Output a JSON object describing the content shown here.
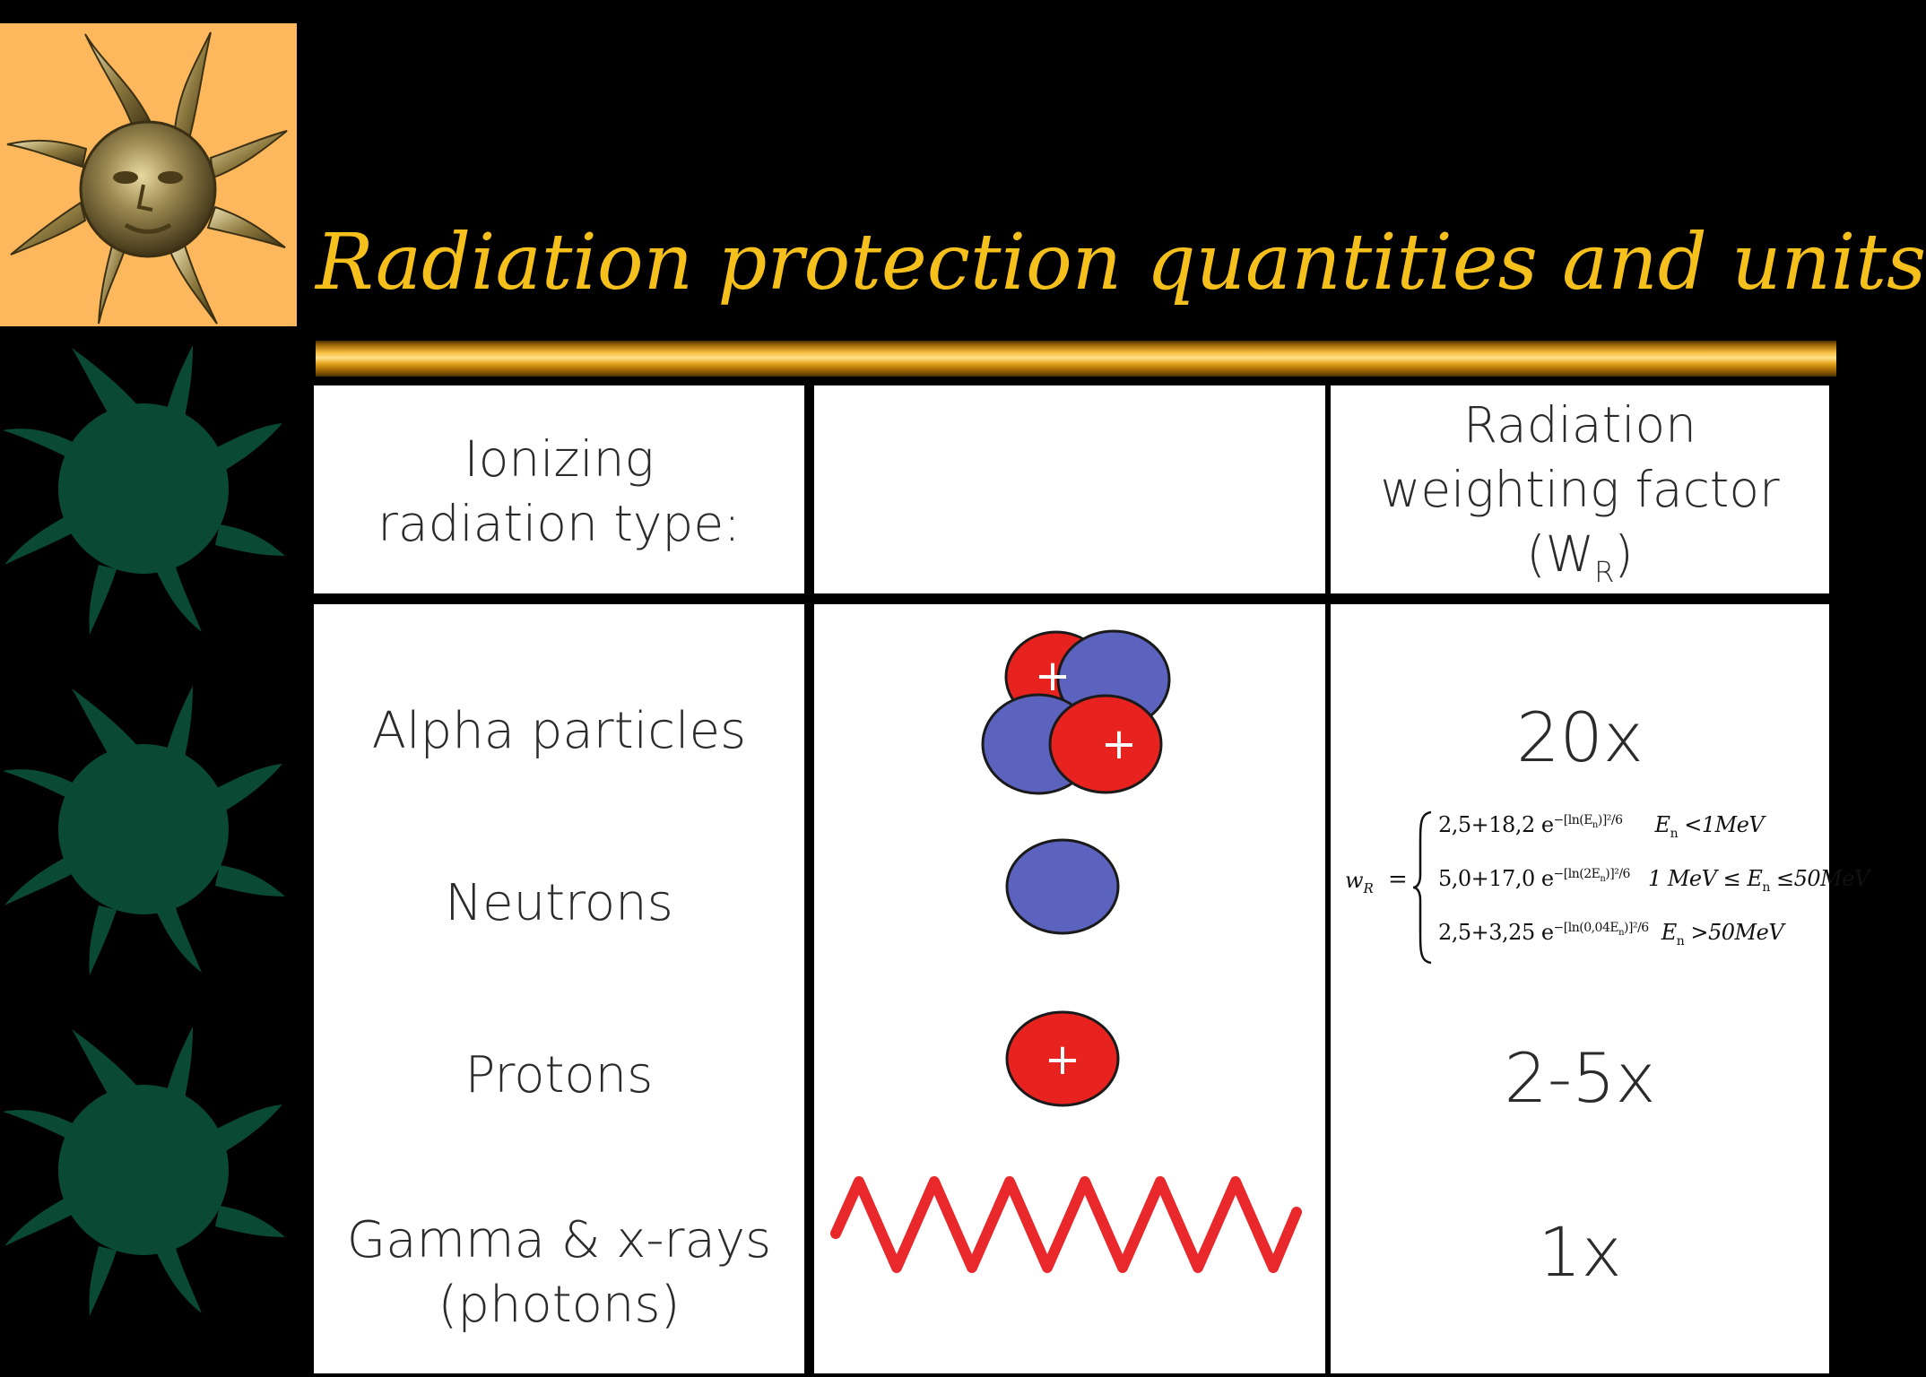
{
  "slide": {
    "title": "Radiation protection quantities and units",
    "colors": {
      "title": "#f5c01b",
      "logo_bg": "#fdb85e",
      "star": "#0a4a35",
      "proton": "#e8231f",
      "neutron": "#5b63bf",
      "wave": "#e8282a"
    },
    "icons": [
      "sun-face-logo-icon",
      "green-star-icon"
    ]
  },
  "table": {
    "headers": {
      "type": [
        "Ionizing",
        "radiation type:"
      ],
      "illustration": "",
      "factor": [
        "Radiation",
        "weighting factor",
        "(W",
        "R",
        ")"
      ]
    },
    "rows": [
      {
        "type": [
          "Alpha particles"
        ],
        "factor": "20x",
        "illustration": "alpha-particle-icon"
      },
      {
        "type": [
          "Neutrons"
        ],
        "factor": "",
        "illustration": "neutron-icon"
      },
      {
        "type": [
          "Protons"
        ],
        "factor": "2-5x",
        "illustration": "proton-icon"
      },
      {
        "type": [
          "Gamma & x-rays",
          "(photons)"
        ],
        "factor": "1x",
        "illustration": "photon-wave-icon"
      }
    ],
    "plus_sign": "+",
    "neutron_formula": {
      "lhs": "w",
      "lhs_sub": "R",
      "equals": "=",
      "cases": [
        {
          "expr": "2,5+18,2 e",
          "exp": "−[ln(E",
          "exp_sub": "n",
          "exp_tail": ")]²/6",
          "cond": "E",
          "cond_sub": "n",
          "cond_tail": " <1MeV"
        },
        {
          "expr": "5,0+17,0 e",
          "exp": "−[ln(2E",
          "exp_sub": "n",
          "exp_tail": ")]²/6",
          "cond": "1 MeV ≤ E",
          "cond_sub": "n",
          "cond_tail": " ≤50MeV"
        },
        {
          "expr": "2,5+3,25 e",
          "exp": "−[ln(0,04E",
          "exp_sub": "n",
          "exp_tail": ")]²/6",
          "cond": "E",
          "cond_sub": "n",
          "cond_tail": " >50MeV"
        }
      ]
    }
  }
}
